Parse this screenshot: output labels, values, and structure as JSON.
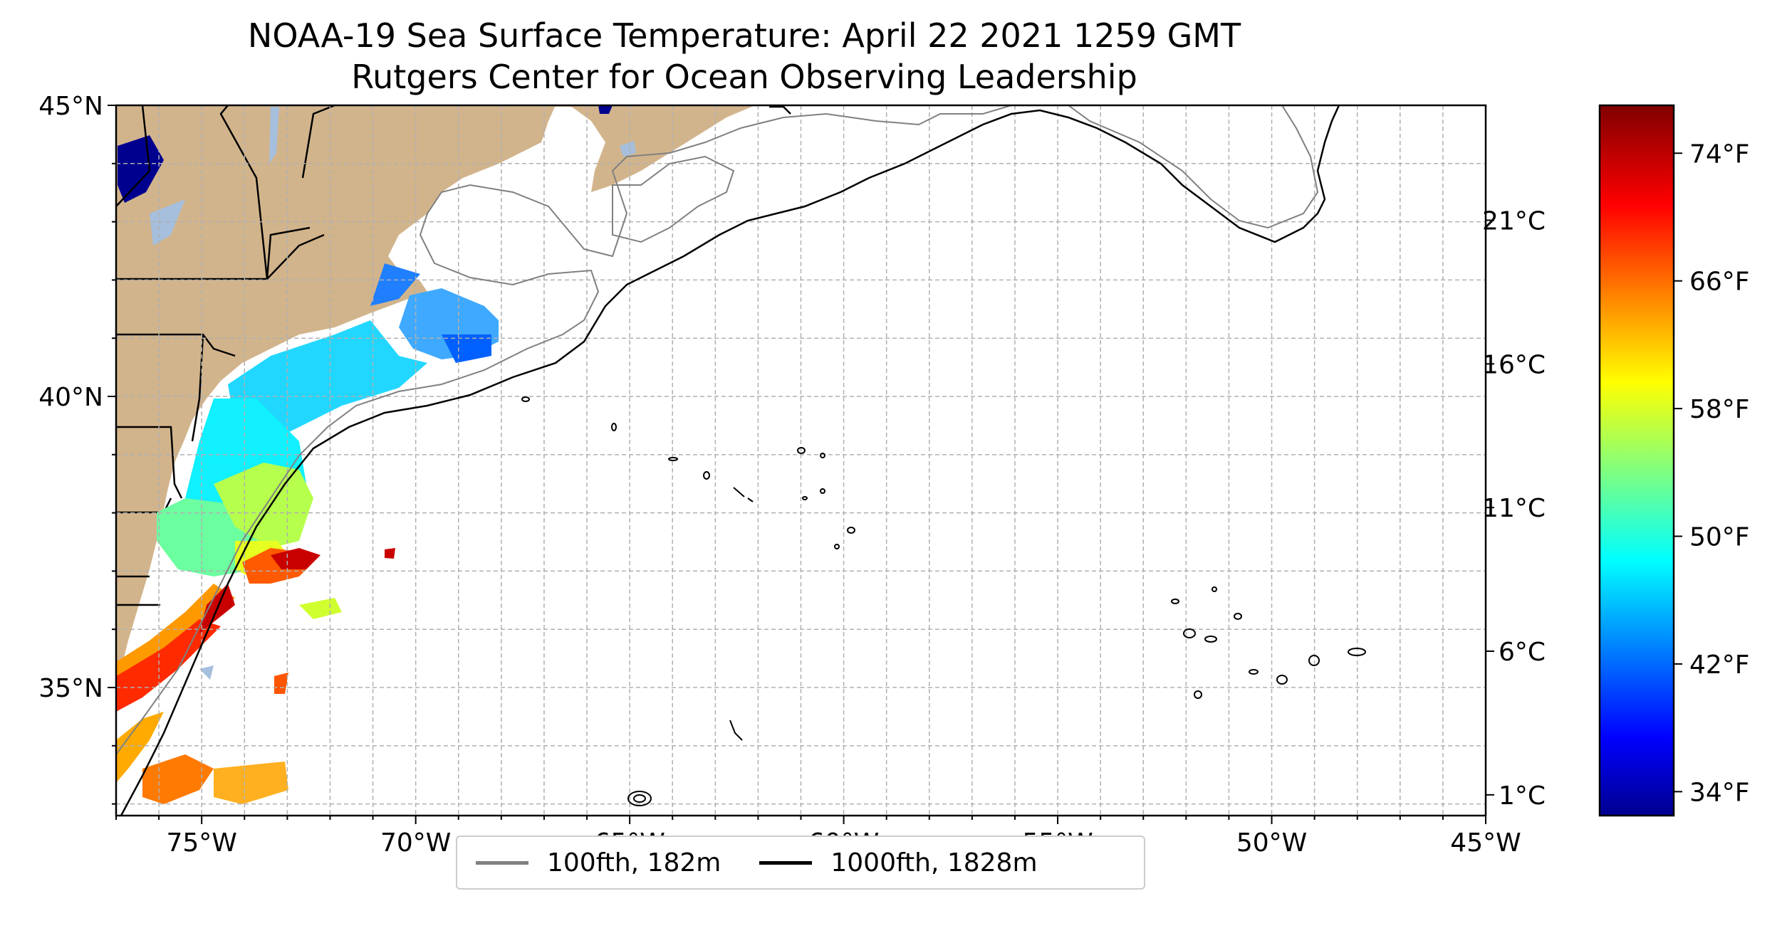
{
  "title": "NOAA-19 Sea Surface Temperature: April 22 2021 1259 GMT",
  "subtitle": "Rutgers Center for Ocean Observing Leadership",
  "chart_data": {
    "type": "map",
    "lon_range": [
      -77,
      -45
    ],
    "lat_range": [
      32.8,
      45
    ],
    "x_ticks": [
      "75°W",
      "70°W",
      "65°W",
      "60°W",
      "55°W",
      "50°W",
      "45°W"
    ],
    "x_tick_values": [
      -75,
      -70,
      -65,
      -60,
      -55,
      -50,
      -45
    ],
    "y_ticks": [
      "45°N",
      "40°N",
      "35°N"
    ],
    "y_tick_values": [
      45,
      40,
      35
    ],
    "grid": true,
    "colormap": "jet",
    "colorbar_range_f": [
      32.5,
      77
    ],
    "colorbar_ticks_f": [
      "74°F",
      "66°F",
      "58°F",
      "50°F",
      "42°F",
      "34°F"
    ],
    "colorbar_ticks_f_values": [
      74,
      66,
      58,
      50,
      42,
      34
    ],
    "colorbar_ticks_c": [
      "21°C",
      "16°C",
      "11°C",
      "6°C",
      "1°C"
    ],
    "colorbar_ticks_c_values": [
      21,
      16,
      11,
      6,
      1
    ],
    "land_color": "#d2b48c",
    "isobath_100_color": "#808080",
    "isobath_1000_color": "#000000",
    "lake_color": "#a5bfdd"
  },
  "legend": {
    "items": [
      {
        "label": "100fth, 182m",
        "color": "#808080"
      },
      {
        "label": "1000fth, 1828m",
        "color": "#000000"
      }
    ],
    "placement": "below"
  }
}
